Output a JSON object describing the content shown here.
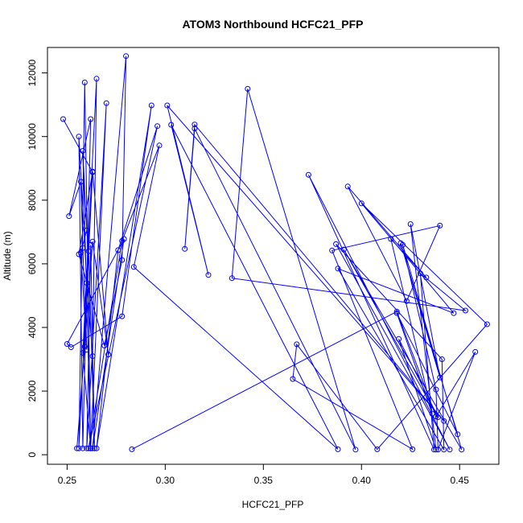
{
  "chart_data": {
    "type": "line",
    "title": "ATOM3 Northbound HCFC21_PFP",
    "xlabel": "HCFC21_PFP",
    "ylabel": "Altitude (m)",
    "xlim": [
      0.24,
      0.47
    ],
    "ylim": [
      -300,
      12800
    ],
    "x_ticks": [
      0.25,
      0.3,
      0.35,
      0.4,
      0.45
    ],
    "x_tick_labels": [
      "0.25",
      "0.30",
      "0.35",
      "0.40",
      "0.45"
    ],
    "y_ticks": [
      0,
      2000,
      4000,
      6000,
      8000,
      10000,
      12000
    ],
    "y_tick_labels": [
      "0",
      "2000",
      "4000",
      "6000",
      "8000",
      "10000",
      "12000"
    ],
    "grid": false,
    "legend": "none",
    "series_color": "#0000ff",
    "series": [
      {
        "points": [
          [
            0.248,
            10550
          ],
          [
            0.263,
            8880
          ],
          [
            0.256,
            200
          ],
          [
            0.259,
            11700
          ],
          [
            0.262,
            200
          ],
          [
            0.258,
            9550
          ],
          [
            0.26,
            7050
          ],
          [
            0.257,
            6350
          ],
          [
            0.26,
            3300
          ],
          [
            0.258,
            6500
          ],
          [
            0.257,
            8580
          ],
          [
            0.251,
            7500
          ],
          [
            0.262,
            10550
          ],
          [
            0.258,
            200
          ],
          [
            0.256,
            10000
          ],
          [
            0.26,
            5400
          ],
          [
            0.263,
            3100
          ],
          [
            0.265,
            11820
          ],
          [
            0.258,
            3200
          ],
          [
            0.262,
            200
          ],
          [
            0.27,
            11050
          ],
          [
            0.26,
            200
          ],
          [
            0.262,
            6600
          ],
          [
            0.264,
            200
          ],
          [
            0.261,
            6400
          ],
          [
            0.259,
            3400
          ],
          [
            0.255,
            200
          ],
          [
            0.263,
            6700
          ],
          [
            0.271,
            3150
          ],
          [
            0.263,
            8900
          ],
          [
            0.256,
            6300
          ],
          [
            0.269,
            3430
          ],
          [
            0.278,
            6120
          ],
          [
            0.28,
            12530
          ],
          [
            0.263,
            200
          ],
          [
            0.279,
            6780
          ],
          [
            0.25,
            3480
          ],
          [
            0.252,
            3380
          ],
          [
            0.278,
            4350
          ],
          [
            0.293,
            10980
          ],
          [
            0.265,
            200
          ],
          [
            0.276,
            6430
          ],
          [
            0.296,
            10330
          ],
          [
            0.261,
            200
          ],
          [
            0.278,
            6720
          ],
          [
            0.297,
            9720
          ],
          [
            0.284,
            5900
          ],
          [
            0.388,
            170
          ],
          [
            0.303,
            10370
          ],
          [
            0.322,
            5650
          ],
          [
            0.301,
            10980
          ],
          [
            0.442,
            1060
          ],
          [
            0.315,
            10380
          ],
          [
            0.31,
            6470
          ],
          [
            0.315,
            10250
          ],
          [
            0.397,
            160
          ],
          [
            0.342,
            11500
          ],
          [
            0.334,
            5550
          ],
          [
            0.453,
            4530
          ],
          [
            0.43,
            5700
          ],
          [
            0.437,
            160
          ],
          [
            0.373,
            8800
          ],
          [
            0.445,
            160
          ],
          [
            0.387,
            6620
          ],
          [
            0.441,
            3000
          ],
          [
            0.442,
            160
          ],
          [
            0.388,
            5850
          ],
          [
            0.447,
            4450
          ],
          [
            0.4,
            7900
          ],
          [
            0.464,
            4100
          ],
          [
            0.408,
            170
          ],
          [
            0.367,
            3470
          ],
          [
            0.365,
            2380
          ],
          [
            0.426,
            170
          ],
          [
            0.385,
            6420
          ],
          [
            0.44,
            7200
          ],
          [
            0.423,
            4830
          ],
          [
            0.393,
            8430
          ],
          [
            0.433,
            5570
          ],
          [
            0.415,
            6780
          ],
          [
            0.436,
            1290
          ],
          [
            0.418,
            4450
          ],
          [
            0.449,
            640
          ],
          [
            0.42,
            6650
          ],
          [
            0.44,
            2430
          ],
          [
            0.425,
            7250
          ],
          [
            0.438,
            160
          ],
          [
            0.419,
            3640
          ],
          [
            0.439,
            1180
          ],
          [
            0.391,
            6450
          ],
          [
            0.451,
            160
          ],
          [
            0.421,
            6600
          ],
          [
            0.438,
            2050
          ],
          [
            0.439,
            160
          ],
          [
            0.458,
            3230
          ],
          [
            0.438,
            1200
          ],
          [
            0.418,
            4500
          ],
          [
            0.283,
            170
          ]
        ]
      }
    ]
  }
}
